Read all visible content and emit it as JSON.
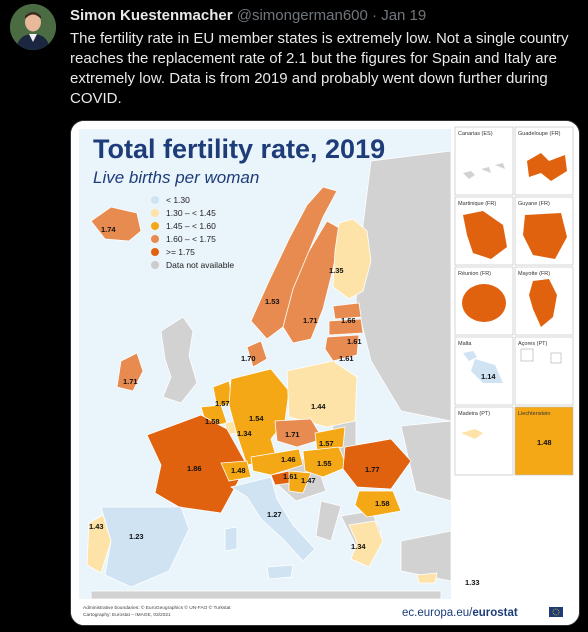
{
  "tweet": {
    "author_name": "Simon Kuestenmacher",
    "handle": "@simongerman600",
    "separator": "·",
    "date": "Jan 19",
    "text": "The fertility rate in EU member states is extremely low. Not a single country reaches the replacement rate of 2.1 but the figures for Spain and Italy are extremely low. Data is from 2019 and probably went down further during COVID."
  },
  "map": {
    "title": "Total fertility rate, 2019",
    "subtitle": "Live births per woman",
    "legend": [
      {
        "label": "< 1.30",
        "color": "#cfe3f3"
      },
      {
        "label": "1.30 – < 1.45",
        "color": "#fde3a7"
      },
      {
        "label": "1.45 – < 1.60",
        "color": "#f4a816"
      },
      {
        "label": "1.60 – < 1.75",
        "color": "#e88b50"
      },
      {
        "label": ">= 1.75",
        "color": "#e0620f"
      },
      {
        "label": "Data not available",
        "color": "#cccccc"
      }
    ],
    "values": {
      "iceland": "1.74",
      "ireland": "1.71",
      "norway": "1.53",
      "sweden": "1.71",
      "finland": "1.35",
      "estonia": "1.66",
      "latvia": "1.61",
      "lithuania": "1.61",
      "denmark": "1.70",
      "netherlands": "1.57",
      "belgium": "1.58",
      "luxembourg": "1.34",
      "germany": "1.54",
      "poland": "1.44",
      "czechia": "1.71",
      "slovakia": "1.57",
      "france": "1.86",
      "switzerland": "1.48",
      "austria": "1.46",
      "hungary": "1.55",
      "slovenia": "1.61",
      "croatia": "1.47",
      "romania": "1.77",
      "bulgaria": "1.58",
      "portugal": "1.43",
      "spain": "1.23",
      "italy": "1.27",
      "greece": "1.34",
      "cyprus": "1.33",
      "malta": "1.14",
      "liechtenstein": "1.48"
    },
    "insets": {
      "canarias": "Canarias (ES)",
      "guadeloupe": "Guadeloupe (FR)",
      "martinique": "Martinique (FR)",
      "guyane": "Guyane (FR)",
      "reunion": "Réunion (FR)",
      "mayotte": "Mayotte (FR)",
      "malta": "Malta",
      "acores": "Açores (PT)",
      "madeira": "Madeira (PT)",
      "liechtenstein": "Liechtenstein"
    },
    "footer_line1": "Administrative boundaries: © EuroGeographics © UN-FAO © Turkstat",
    "footer_line2": "Cartography: Eurostat – IMAGE, 03/2021",
    "brand_domain": "ec.europa.eu/",
    "brand_name": "eurostat",
    "colors": {
      "orange_dark": "#e0620f",
      "orange_mid": "#e88b50",
      "amber": "#f4a816",
      "cream": "#fde3a7",
      "lightblue": "#cfe3f3",
      "grey": "#cccccc",
      "title_navy": "#1d3c78"
    }
  }
}
